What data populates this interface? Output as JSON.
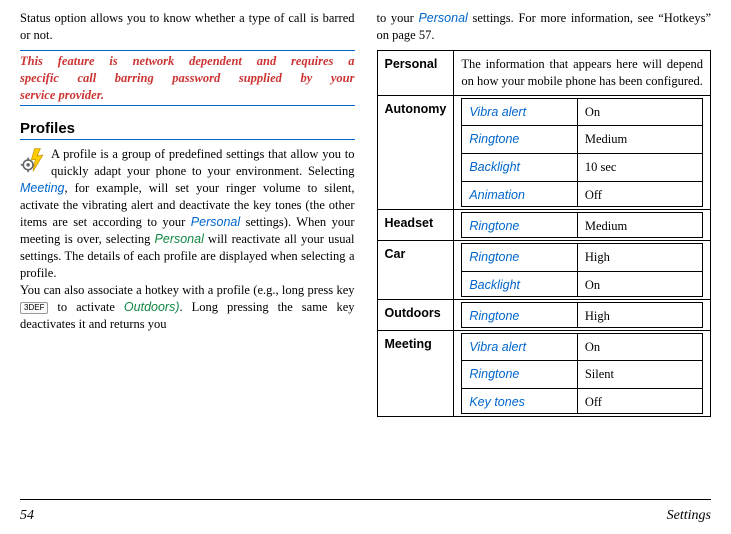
{
  "left": {
    "intro": "Status option allows you to know whether a type of call is barred or not.",
    "note_l1": "This feature is network dependent and requires a",
    "note_l2": "specific call barring password supplied by your",
    "note_l3": "service provider.",
    "section": "Profiles",
    "p1a": "A profile is a group of predefined settings that allow you to quickly adapt your phone to your environment. Selecting ",
    "meeting": "Meeting",
    "p1b": ", for example, will set your ringer volume to silent, activate the vibrating alert and deactivate the key tones (the other items are set according to your ",
    "personal1": "Personal",
    "p1c": " settings). When your meeting is over, selecting ",
    "personal2": "Personal",
    "p1d": " will reactivate all your usual settings. The details of each profile are displayed when selecting a profile.",
    "p2a": "You can also associate a hotkey with a profile (e.g., long press key ",
    "key": "3DEF",
    "p2b": " to activate ",
    "outdoors": "Outdoors)",
    "p2c": ". Long pressing the same key deactivates it and returns you"
  },
  "right": {
    "lead_a": "to your ",
    "lead_link": "Personal",
    "lead_b": " settings. For more information, see “Hotkeys” on page 57.",
    "rows": [
      {
        "name": "Personal",
        "desc": "The information that appears here will depend on how your mobile phone has been configured."
      },
      {
        "name": "Autonomy",
        "items": [
          {
            "label": "Vibra alert",
            "value": "On"
          },
          {
            "label": "Ringtone",
            "value": "Medium"
          },
          {
            "label": "Backlight",
            "value": "10 sec"
          },
          {
            "label": "Animation",
            "value": "Off"
          }
        ]
      },
      {
        "name": "Headset",
        "items": [
          {
            "label": "Ringtone",
            "value": "Medium"
          }
        ]
      },
      {
        "name": "Car",
        "items": [
          {
            "label": "Ringtone",
            "value": "High"
          },
          {
            "label": "Backlight",
            "value": "On"
          }
        ]
      },
      {
        "name": "Outdoors",
        "items": [
          {
            "label": "Ringtone",
            "value": "High"
          }
        ]
      },
      {
        "name": "Meeting",
        "items": [
          {
            "label": "Vibra alert",
            "value": "On"
          },
          {
            "label": "Ringtone",
            "value": "Silent"
          },
          {
            "label": "Key tones",
            "value": "Off"
          }
        ]
      }
    ]
  },
  "footer": {
    "page": "54",
    "section": "Settings"
  },
  "icon": {
    "bolt_fill": "#ffcc00",
    "gear_fill": "#666666"
  }
}
